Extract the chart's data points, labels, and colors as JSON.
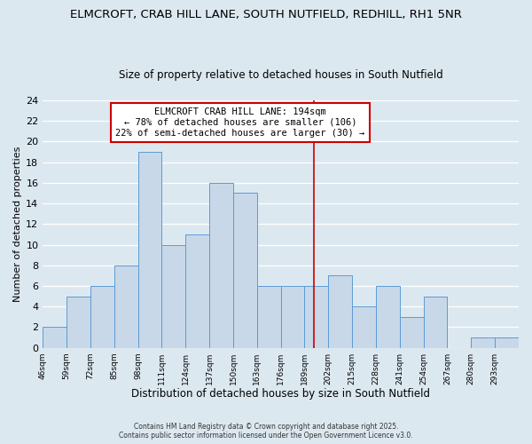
{
  "title": "ELMCROFT, CRAB HILL LANE, SOUTH NUTFIELD, REDHILL, RH1 5NR",
  "subtitle": "Size of property relative to detached houses in South Nutfield",
  "xlabel": "Distribution of detached houses by size in South Nutfield",
  "ylabel": "Number of detached properties",
  "bar_edges": [
    46,
    59,
    72,
    85,
    98,
    111,
    124,
    137,
    150,
    163,
    176,
    189,
    202,
    215,
    228,
    241,
    254,
    267,
    280,
    293,
    306
  ],
  "bar_heights": [
    2,
    5,
    6,
    8,
    19,
    10,
    11,
    16,
    15,
    6,
    6,
    6,
    7,
    4,
    6,
    3,
    5,
    0,
    1,
    1
  ],
  "bar_color": "#c8d8e8",
  "bar_edge_color": "#5b9bd5",
  "vline_x": 194,
  "vline_color": "#cc0000",
  "ylim": [
    0,
    24
  ],
  "yticks": [
    0,
    2,
    4,
    6,
    8,
    10,
    12,
    14,
    16,
    18,
    20,
    22,
    24
  ],
  "annotation_title": "ELMCROFT CRAB HILL LANE: 194sqm",
  "annotation_line1": "← 78% of detached houses are smaller (106)",
  "annotation_line2": "22% of semi-detached houses are larger (30) →",
  "annotation_box_color": "#ffffff",
  "annotation_border_color": "#cc0000",
  "background_color": "#dce8f0",
  "plot_bg_color": "#dce8f0",
  "grid_color": "#ffffff",
  "footer_line1": "Contains HM Land Registry data © Crown copyright and database right 2025.",
  "footer_line2": "Contains public sector information licensed under the Open Government Licence v3.0.",
  "title_fontsize": 9.5,
  "subtitle_fontsize": 8.5,
  "xlabel_fontsize": 8.5,
  "ylabel_fontsize": 8
}
